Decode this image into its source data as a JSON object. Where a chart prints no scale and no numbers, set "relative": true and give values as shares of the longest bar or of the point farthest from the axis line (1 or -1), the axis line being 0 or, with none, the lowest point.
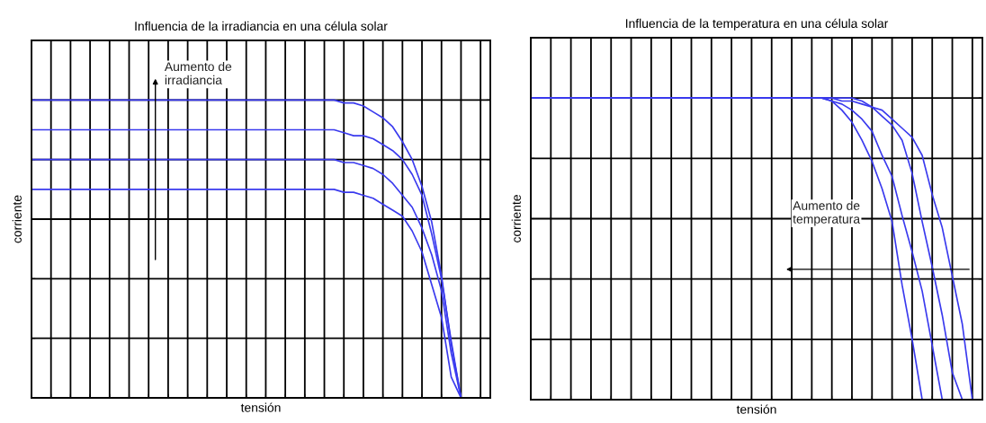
{
  "chart_data": [
    {
      "type": "line",
      "title": "Influencia de la irradiancia en una célula solar",
      "xlabel": "tensión",
      "ylabel": "corriente",
      "relative": true,
      "grid": true,
      "tick_labels": false,
      "marker": "none",
      "line_style": "solid",
      "annotations": [
        "Aumento de\nirradiancia"
      ],
      "categories": [
        null,
        null,
        null,
        null,
        null,
        null,
        null,
        null,
        null,
        null,
        null,
        null,
        null,
        null,
        null,
        null,
        null,
        null,
        null,
        null,
        null,
        null,
        null,
        null,
        null,
        null,
        null,
        null,
        null,
        null,
        null,
        null,
        null,
        null,
        null,
        null,
        null,
        null,
        null,
        null,
        null,
        null,
        null,
        null,
        null,
        null,
        null,
        null
      ],
      "series": [
        {
          "color": "#3a3aee",
          "values": [
            1,
            1,
            1,
            1,
            1,
            1,
            1,
            1,
            1,
            1,
            1,
            1,
            1,
            1,
            1,
            1,
            1,
            1,
            1,
            1,
            1,
            1,
            1,
            1,
            1,
            1,
            1,
            1,
            1,
            1,
            1,
            1,
            0.99,
            0.99,
            0.98,
            0.96,
            0.94,
            0.91,
            0.86,
            0.8,
            0.71,
            0.59,
            0.41,
            0.18,
            0,
            null,
            null,
            null
          ]
        },
        {
          "color": "#3a3aee",
          "values": [
            0.9,
            0.9,
            0.9,
            0.9,
            0.9,
            0.9,
            0.9,
            0.9,
            0.9,
            0.9,
            0.9,
            0.9,
            0.9,
            0.9,
            0.9,
            0.9,
            0.9,
            0.9,
            0.9,
            0.9,
            0.9,
            0.9,
            0.9,
            0.9,
            0.9,
            0.9,
            0.9,
            0.9,
            0.9,
            0.9,
            0.9,
            0.9,
            0.89,
            0.88,
            0.88,
            0.87,
            0.85,
            0.83,
            0.8,
            0.75,
            0.68,
            0.55,
            0.4,
            0.19,
            0,
            null,
            null,
            null
          ]
        },
        {
          "color": "#3a3aee",
          "values": [
            0.8,
            0.8,
            0.8,
            0.8,
            0.8,
            0.8,
            0.8,
            0.8,
            0.8,
            0.8,
            0.8,
            0.8,
            0.8,
            0.8,
            0.8,
            0.8,
            0.8,
            0.8,
            0.8,
            0.8,
            0.8,
            0.8,
            0.8,
            0.8,
            0.8,
            0.8,
            0.8,
            0.8,
            0.8,
            0.8,
            0.8,
            0.8,
            0.79,
            0.79,
            0.78,
            0.77,
            0.75,
            0.72,
            0.68,
            0.64,
            0.57,
            0.48,
            0.36,
            0.15,
            0,
            null,
            null,
            null
          ]
        },
        {
          "color": "#3a3aee",
          "values": [
            0.7,
            0.7,
            0.7,
            0.7,
            0.7,
            0.7,
            0.7,
            0.7,
            0.7,
            0.7,
            0.7,
            0.7,
            0.7,
            0.7,
            0.7,
            0.7,
            0.7,
            0.7,
            0.7,
            0.7,
            0.7,
            0.7,
            0.7,
            0.7,
            0.7,
            0.7,
            0.7,
            0.7,
            0.7,
            0.7,
            0.7,
            0.7,
            0.69,
            0.69,
            0.68,
            0.67,
            0.65,
            0.63,
            0.61,
            0.56,
            0.49,
            0.38,
            0.27,
            0.07,
            0,
            null,
            null,
            null
          ]
        }
      ]
    },
    {
      "type": "line",
      "title": "Influencia de la temperatura en una célula solar",
      "xlabel": "tensión",
      "ylabel": "corriente",
      "relative": true,
      "grid": true,
      "tick_labels": false,
      "marker": "none",
      "line_style": "solid",
      "annotations": [
        "Aumento de\ntemperatura"
      ],
      "categories": [
        null,
        null,
        null,
        null,
        null,
        null,
        null,
        null,
        null,
        null,
        null,
        null,
        null,
        null,
        null,
        null,
        null,
        null,
        null,
        null,
        null,
        null,
        null,
        null,
        null,
        null,
        null,
        null,
        null,
        null,
        null,
        null,
        null,
        null,
        null,
        null,
        null,
        null,
        null,
        null,
        null,
        null,
        null,
        null,
        null,
        null
      ],
      "series": [
        {
          "color": "#3a3aee",
          "values": [
            1,
            1,
            1,
            1,
            1,
            1,
            1,
            1,
            1,
            1,
            1,
            1,
            1,
            1,
            1,
            1,
            1,
            1,
            1,
            1,
            1,
            1,
            1,
            1,
            1,
            1,
            1,
            1,
            1,
            1,
            0.99,
            0.96,
            0.92,
            0.86,
            0.79,
            0.7,
            0.59,
            0.38,
            0.2,
            0,
            null,
            null,
            null,
            null,
            null,
            null
          ]
        },
        {
          "color": "#3a3aee",
          "values": [
            1,
            1,
            1,
            1,
            1,
            1,
            1,
            1,
            1,
            1,
            1,
            1,
            1,
            1,
            1,
            1,
            1,
            1,
            1,
            1,
            1,
            1,
            1,
            1,
            1,
            1,
            1,
            1,
            1,
            1,
            0.99,
            0.98,
            0.96,
            0.93,
            0.89,
            0.81,
            0.74,
            0.61,
            0.49,
            0.36,
            0.18,
            0,
            null,
            null,
            null,
            null
          ]
        },
        {
          "color": "#3a3aee",
          "values": [
            1,
            1,
            1,
            1,
            1,
            1,
            1,
            1,
            1,
            1,
            1,
            1,
            1,
            1,
            1,
            1,
            1,
            1,
            1,
            1,
            1,
            1,
            1,
            1,
            1,
            1,
            1,
            1,
            1,
            1,
            1,
            0.99,
            0.99,
            0.98,
            0.97,
            0.94,
            0.91,
            0.86,
            0.75,
            0.59,
            0.44,
            0.28,
            0.09,
            0,
            null,
            null
          ]
        },
        {
          "color": "#3a3aee",
          "values": [
            1,
            1,
            1,
            1,
            1,
            1,
            1,
            1,
            1,
            1,
            1,
            1,
            1,
            1,
            1,
            1,
            1,
            1,
            1,
            1,
            1,
            1,
            1,
            1,
            1,
            1,
            1,
            1,
            1,
            1,
            1,
            1,
            1,
            0.99,
            0.97,
            0.96,
            0.93,
            0.9,
            0.87,
            0.81,
            0.68,
            0.57,
            0.41,
            0.25,
            0,
            null
          ]
        }
      ]
    }
  ]
}
